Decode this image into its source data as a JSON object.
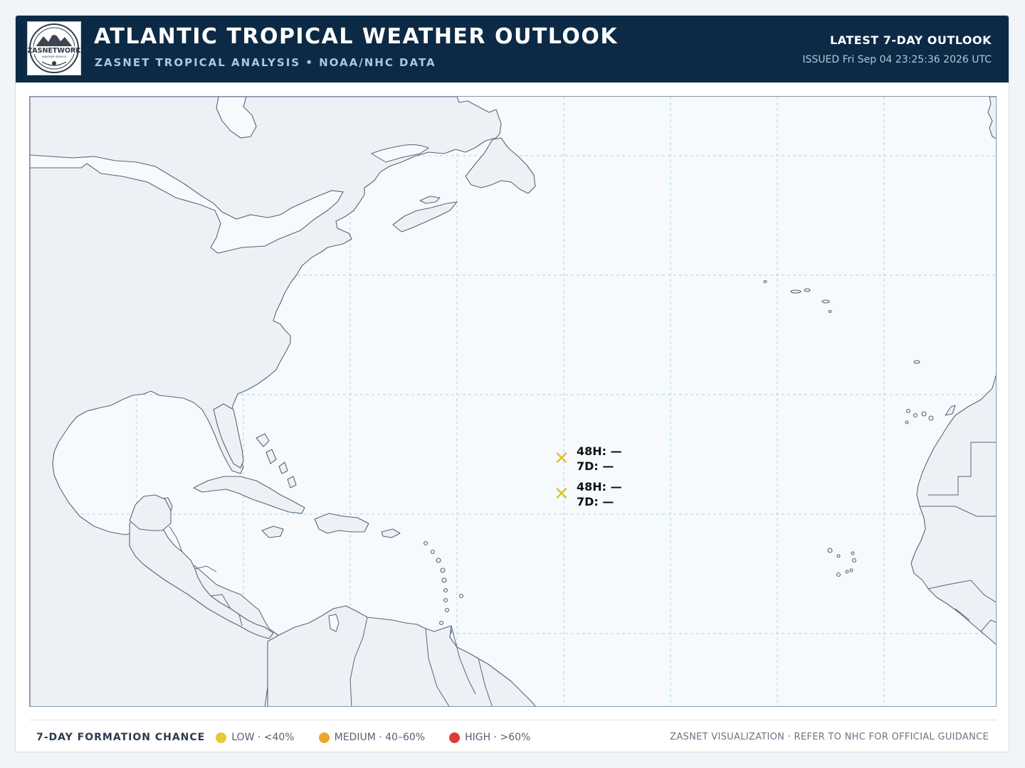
{
  "header": {
    "title": "ATLANTIC TROPICAL WEATHER OUTLOOK",
    "subtitle": "ZASNET TROPICAL ANALYSIS • NOAA/NHC DATA",
    "outlook_label": "LATEST 7-DAY OUTLOOK",
    "issued": "ISSUED Fri Sep 04 23:25:36 2026 UTC",
    "colors": {
      "bar": "#0c2a45",
      "title": "#ffffff",
      "subtitle": "#a9c6e6"
    }
  },
  "logo": {
    "text_main": "ZASNETWORK",
    "text_sub": "WEATHER SERVICE"
  },
  "map": {
    "region": "Atlantic Basin",
    "land_color": "#edf1f5",
    "ocean_color": "#f7fafc",
    "coast_color": "#56657a",
    "grid_color": "#a8d4e2"
  },
  "disturbances": [
    {
      "symbol": "✕",
      "color": "#e0c23a",
      "line1": "48H: —",
      "line2": "7D: —"
    },
    {
      "symbol": "✕",
      "color": "#e0c23a",
      "line1": "48H: —",
      "line2": "7D: —"
    }
  ],
  "legend": {
    "title": "7-DAY FORMATION CHANCE",
    "items": [
      {
        "label": "LOW · <40%",
        "color": "#e6c83c"
      },
      {
        "label": "MEDIUM · 40–60%",
        "color": "#eea72a"
      },
      {
        "label": "HIGH · >60%",
        "color": "#de3b3b"
      }
    ]
  },
  "footer": {
    "note": "ZASNET VISUALIZATION · REFER TO NHC FOR OFFICIAL GUIDANCE"
  }
}
